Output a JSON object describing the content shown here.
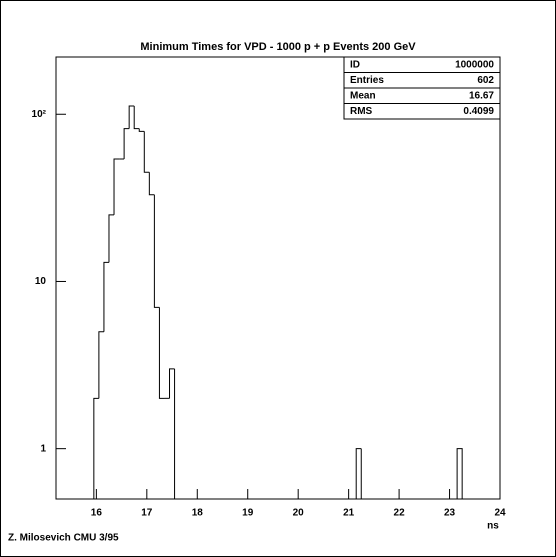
{
  "chart_data": {
    "type": "histogram",
    "title": "Minimum Times for VPD - 1000 p + p Events 200 GeV",
    "x_label": "ns",
    "footer": "Z. Milosevich CMU 3/95",
    "bins": [
      15.95,
      16.05,
      16.15,
      16.25,
      16.35,
      16.45,
      16.55,
      16.65,
      16.75,
      16.85,
      16.95,
      17.05,
      17.15,
      17.25,
      17.35,
      17.45,
      17.55,
      21.15,
      21.25,
      23.15,
      23.25
    ],
    "values": [
      2,
      5,
      13,
      25,
      54,
      54,
      82,
      112,
      82,
      79,
      45,
      33,
      7,
      2,
      2,
      3,
      0,
      1,
      0,
      1
    ],
    "color": "#000000",
    "xlim": [
      15.2,
      24
    ],
    "xticks": [
      16,
      17,
      18,
      19,
      20,
      21,
      22,
      23,
      24
    ],
    "ylim": [
      0.5,
      220
    ],
    "log_y": true,
    "yticks": [
      1,
      10,
      {
        "value": 100,
        "label": "10²"
      }
    ],
    "stats": [
      [
        "ID",
        "1000000"
      ],
      [
        "Entries",
        "602"
      ],
      [
        "Mean",
        "16.67"
      ],
      [
        "RMS",
        "0.4099"
      ]
    ]
  }
}
